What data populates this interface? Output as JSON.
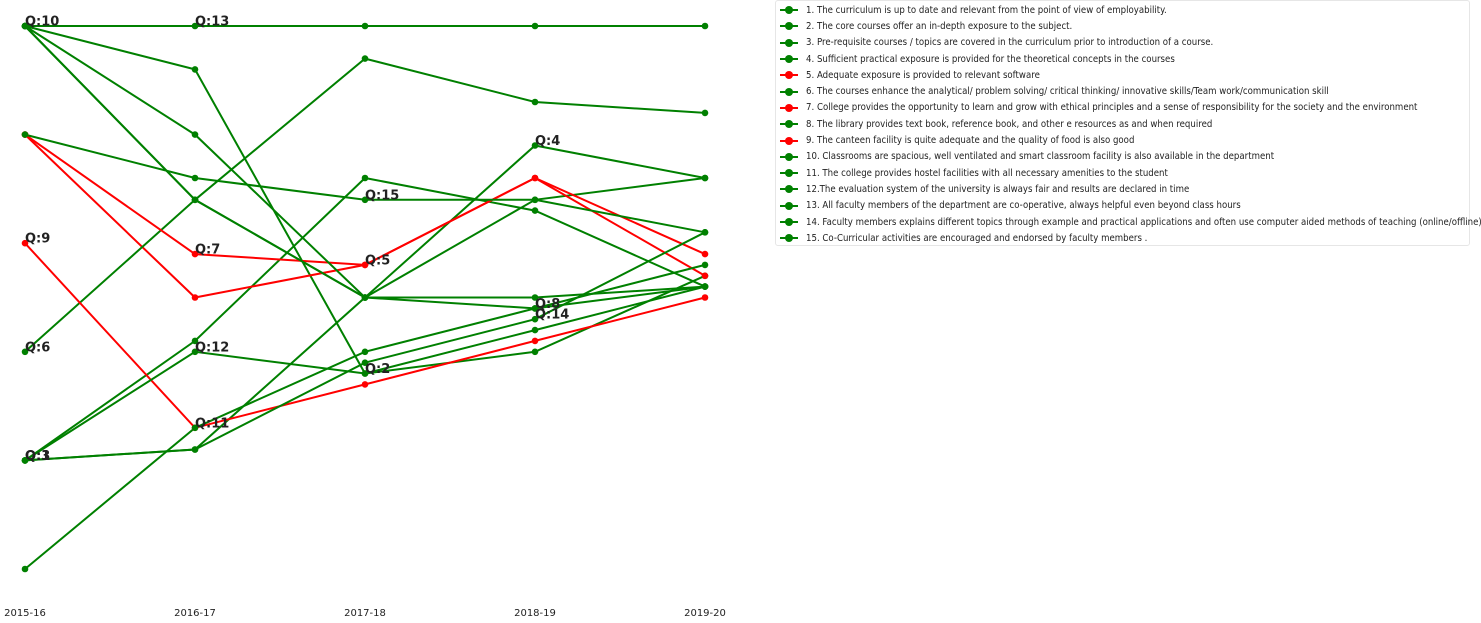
{
  "chart_data": {
    "type": "line",
    "title": "",
    "xlabel": "",
    "ylabel": "",
    "x": [
      "2015-16",
      "2016-17",
      "2017-18",
      "2018-19",
      "2019-20"
    ],
    "ylim": [
      1,
      6
    ],
    "grid": false,
    "legend_position": "top-right",
    "colors": {
      "good": "#008000",
      "bad": "#ff0000"
    },
    "series": [
      {
        "name": "1. The curriculum is up to date and relevant from the point of view of employability.",
        "color": "#008000",
        "values": [
          2.0,
          2.1,
          3.5,
          4.4,
          4.6
        ]
      },
      {
        "name": "2. The core courses offer an in-depth exposure to the subject.",
        "color": "#008000",
        "values": [
          6.0,
          5.6,
          2.8,
          3.0,
          3.7
        ]
      },
      {
        "name": "3. Pre-requisite courses / topics are covered in the curriculum prior to introduction of a course.",
        "color": "#008000",
        "values": [
          2.0,
          3.1,
          4.6,
          4.3,
          3.6
        ]
      },
      {
        "name": "4. Sufficient practical exposure is provided for the theoretical concepts in the courses",
        "color": "#008000",
        "values": [
          6.0,
          4.4,
          3.5,
          4.9,
          4.6
        ]
      },
      {
        "name": "5. Adequate exposure is provided to relevant software",
        "color": "#ff0000",
        "values": [
          5.0,
          3.5,
          3.8,
          4.6,
          3.7
        ]
      },
      {
        "name": "6. The courses enhance the analytical/ problem solving/ critical thinking/ innovative skills/Team work/communication skill",
        "color": "#008000",
        "values": [
          3.0,
          4.4,
          5.7,
          5.3,
          5.2
        ]
      },
      {
        "name": "7. College provides the opportunity to learn and grow with ethical principles and a sense of responsibility for the society and the environment",
        "color": "#ff0000",
        "values": [
          5.0,
          3.9,
          3.8,
          4.6,
          3.9
        ]
      },
      {
        "name": "8. The library provides text book, reference book, and other e resources as and when required",
        "color": "#008000",
        "values": [
          6.0,
          4.4,
          3.5,
          3.4,
          3.8
        ]
      },
      {
        "name": "9. The canteen facility is quite adequate and the quality of food is also good",
        "color": "#ff0000",
        "values": [
          4.0,
          2.3,
          2.7,
          3.1,
          3.5
        ]
      },
      {
        "name": "10. Classrooms are spacious, well ventilated and smart classroom facility is also available in the department",
        "color": "#008000",
        "values": [
          6.0,
          5.0,
          3.5,
          3.5,
          3.6
        ]
      },
      {
        "name": "11. The college provides hostel facilities with all necessary amenities to the student",
        "color": "#008000",
        "values": [
          1.0,
          2.3,
          3.0,
          3.4,
          3.6
        ]
      },
      {
        "name": "12.The evaluation system of the university is always fair and results are declared in time",
        "color": "#008000",
        "values": [
          2.0,
          3.0,
          2.8,
          3.2,
          3.6
        ]
      },
      {
        "name": "13. All faculty members of the department are co-operative, always helpful even beyond class hours",
        "color": "#008000",
        "values": [
          6.0,
          6.0,
          6.0,
          6.0,
          6.0
        ]
      },
      {
        "name": "14. Faculty members explains different topics through example and practical applications and often use computer aided methods of teaching (online/offline)",
        "color": "#008000",
        "values": [
          2.0,
          2.1,
          2.9,
          3.3,
          4.1
        ]
      },
      {
        "name": "15. Co-Curricular activities are encouraged and endorsed by faculty members .",
        "color": "#008000",
        "values": [
          5.0,
          4.6,
          4.4,
          4.4,
          4.1
        ]
      }
    ],
    "point_labels": [
      {
        "text": "Q:10",
        "series": 9,
        "index": 0
      },
      {
        "text": "Q:6",
        "series": 5,
        "index": 0
      },
      {
        "text": "Q:9",
        "series": 8,
        "index": 0
      },
      {
        "text": "Q:3",
        "series": 2,
        "index": 0
      },
      {
        "text": "Q:1",
        "series": 0,
        "index": 0
      },
      {
        "text": "Q:13",
        "series": 12,
        "index": 1
      },
      {
        "text": "Q:12",
        "series": 11,
        "index": 1
      },
      {
        "text": "Q:7",
        "series": 6,
        "index": 1
      },
      {
        "text": "Q:11",
        "series": 10,
        "index": 1
      },
      {
        "text": "Q:15",
        "series": 14,
        "index": 2
      },
      {
        "text": "Q:5",
        "series": 4,
        "index": 2
      },
      {
        "text": "Q:2",
        "series": 1,
        "index": 2
      },
      {
        "text": "Q:14",
        "series": 13,
        "index": 3
      },
      {
        "text": "Q:4",
        "series": 3,
        "index": 3
      },
      {
        "text": "Q:8",
        "series": 7,
        "index": 3
      }
    ]
  }
}
